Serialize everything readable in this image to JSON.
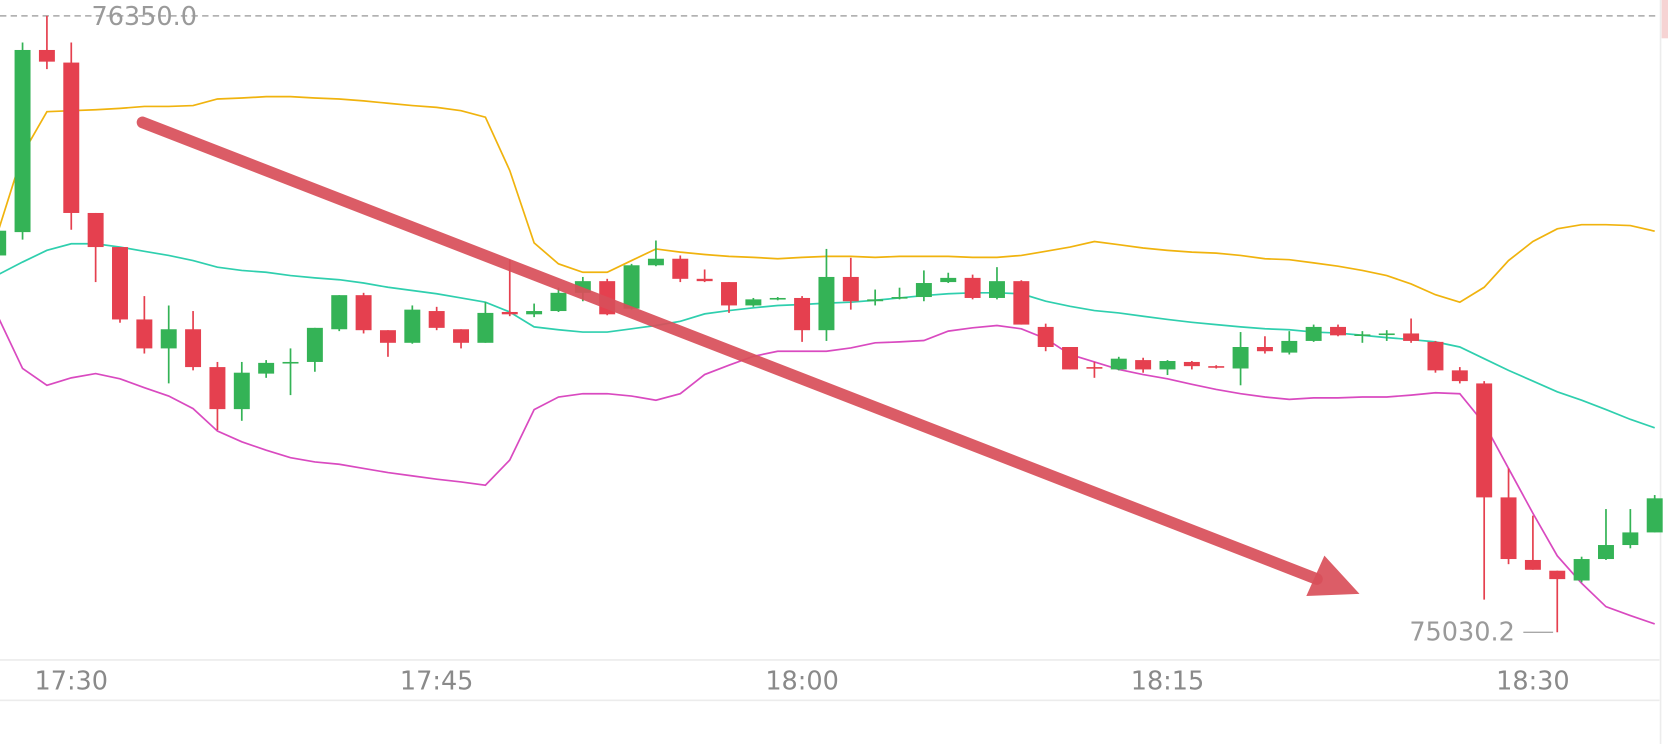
{
  "chart_data": {
    "type": "candlestick",
    "categories": [
      null,
      null,
      null,
      "17:30",
      null,
      null,
      null,
      null,
      null,
      null,
      null,
      null,
      null,
      null,
      null,
      null,
      null,
      null,
      "17:45",
      null,
      null,
      null,
      null,
      null,
      null,
      null,
      null,
      null,
      null,
      null,
      null,
      null,
      null,
      "18:00",
      null,
      null,
      null,
      null,
      null,
      null,
      null,
      null,
      null,
      null,
      null,
      null,
      null,
      null,
      "18:15",
      null,
      null,
      null,
      null,
      null,
      null,
      null,
      null,
      null,
      null,
      null,
      null,
      null,
      null,
      "18:30",
      null,
      null,
      null,
      null,
      null
    ],
    "open": [
      75837,
      75887,
      76277,
      76250,
      75928,
      75855,
      75700,
      75638,
      75679,
      75598,
      75508,
      75584,
      75607,
      75609,
      75679,
      75752,
      75677,
      75650,
      75718,
      75679,
      75650,
      75716,
      75711,
      75718,
      75757,
      75782,
      75723,
      75816,
      75830,
      75787,
      75780,
      75730,
      75743,
      75746,
      75677,
      75791,
      75739,
      75746,
      75748,
      75780,
      75789,
      75746,
      75782,
      75684,
      75641,
      75598,
      75593,
      75613,
      75593,
      75609,
      75600,
      75595,
      75641,
      75629,
      75654,
      75684,
      75666,
      75668,
      75670,
      75652,
      75591,
      75563,
      75319,
      75185,
      75162,
      75141,
      75187,
      75217,
      75244
    ],
    "high": [
      75894,
      76293,
      76350,
      76293,
      75928,
      75855,
      75750,
      75730,
      75718,
      75609,
      75609,
      75613,
      75638,
      75682,
      75752,
      75757,
      75677,
      75730,
      75727,
      75679,
      75737,
      75828,
      75734,
      75768,
      75791,
      75787,
      75819,
      75869,
      75837,
      75807,
      75780,
      75746,
      75748,
      75750,
      75851,
      75832,
      75764,
      75768,
      75805,
      75800,
      75796,
      75812,
      75784,
      75691,
      75641,
      75609,
      75620,
      75618,
      75613,
      75611,
      75602,
      75673,
      75664,
      75675,
      75689,
      75689,
      75675,
      75677,
      75702,
      75654,
      75598,
      75568,
      75381,
      75280,
      75162,
      75192,
      75294,
      75294,
      75324
    ],
    "low": [
      75837,
      75871,
      76236,
      75892,
      75780,
      75693,
      75627,
      75563,
      75591,
      75463,
      75483,
      75575,
      75538,
      75588,
      75675,
      75670,
      75620,
      75648,
      75677,
      75638,
      75650,
      75707,
      75705,
      75716,
      75739,
      75709,
      75721,
      75814,
      75780,
      75780,
      75714,
      75727,
      75741,
      75652,
      75654,
      75721,
      75730,
      75743,
      75739,
      75778,
      75743,
      75743,
      75689,
      75632,
      75593,
      75575,
      75591,
      75586,
      75581,
      75593,
      75595,
      75559,
      75627,
      75625,
      75652,
      75664,
      75650,
      75654,
      75650,
      75586,
      75563,
      75100,
      75176,
      75164,
      75030.2,
      75137,
      75185,
      75210,
      75244
    ],
    "close": [
      75890,
      76277,
      76252,
      75928,
      75855,
      75700,
      75638,
      75679,
      75598,
      75508,
      75586,
      75607,
      75609,
      75682,
      75752,
      75677,
      75650,
      75721,
      75682,
      75650,
      75714,
      75711,
      75718,
      75757,
      75782,
      75711,
      75816,
      75830,
      75787,
      75782,
      75730,
      75743,
      75746,
      75677,
      75791,
      75739,
      75743,
      75748,
      75778,
      75789,
      75746,
      75782,
      75689,
      75641,
      75593,
      75595,
      75616,
      75593,
      75611,
      75600,
      75598,
      75641,
      75632,
      75654,
      75684,
      75666,
      75668,
      75670,
      75654,
      75591,
      75568,
      75319,
      75187,
      75164,
      75144,
      75187,
      75217,
      75244,
      75317
    ],
    "up_color": "#34b356",
    "down_color": "#e5404f",
    "bands": {
      "upper": {
        "color": "#f0b30e",
        "values": [
          75889,
          76054,
          76145,
          76147,
          76149,
          76152,
          76156,
          76156,
          76158,
          76172,
          76174,
          76177,
          76177,
          76174,
          76172,
          76168,
          76163,
          76158,
          76154,
          76147,
          76133,
          76019,
          75864,
          75819,
          75801,
          75801,
          75826,
          75851,
          75844,
          75839,
          75835,
          75833,
          75830,
          75833,
          75835,
          75835,
          75833,
          75835,
          75835,
          75835,
          75833,
          75833,
          75837,
          75846,
          75855,
          75867,
          75860,
          75853,
          75848,
          75844,
          75842,
          75837,
          75830,
          75828,
          75821,
          75814,
          75805,
          75794,
          75776,
          75753,
          75737,
          75769,
          75826,
          75867,
          75894,
          75903,
          75903,
          75901,
          75889
        ]
      },
      "middle": {
        "color": "#2fcfae",
        "values": [
          75796,
          75823,
          75848,
          75862,
          75862,
          75855,
          75846,
          75837,
          75826,
          75812,
          75805,
          75801,
          75794,
          75789,
          75785,
          75778,
          75769,
          75762,
          75755,
          75746,
          75737,
          75716,
          75684,
          75678,
          75673,
          75673,
          75680,
          75687,
          75696,
          75712,
          75719,
          75725,
          75730,
          75732,
          75735,
          75737,
          75741,
          75746,
          75751,
          75755,
          75757,
          75757,
          75755,
          75739,
          75728,
          75719,
          75714,
          75707,
          75700,
          75694,
          75689,
          75684,
          75680,
          75678,
          75673,
          75671,
          75666,
          75661,
          75657,
          75652,
          75641,
          75616,
          75591,
          75568,
          75545,
          75527,
          75507,
          75486,
          75468
        ]
      },
      "lower": {
        "color": "#d94ac0",
        "values": [
          75705,
          75595,
          75559,
          75575,
          75584,
          75573,
          75554,
          75536,
          75509,
          75461,
          75438,
          75420,
          75404,
          75395,
          75390,
          75381,
          75372,
          75365,
          75358,
          75352,
          75345,
          75399,
          75507,
          75534,
          75541,
          75541,
          75536,
          75527,
          75541,
          75582,
          75602,
          75621,
          75632,
          75632,
          75632,
          75639,
          75650,
          75652,
          75655,
          75675,
          75682,
          75687,
          75680,
          75659,
          75625,
          75609,
          75593,
          75582,
          75573,
          75561,
          75550,
          75541,
          75534,
          75529,
          75532,
          75532,
          75534,
          75534,
          75538,
          75543,
          75541,
          75477,
          75381,
          75285,
          75194,
          75135,
          75085,
          75066,
          75048
        ]
      }
    },
    "ylim": [
      74971,
      76384
    ],
    "annotations": [
      {
        "value": 76350,
        "label": "76350.0"
      },
      {
        "value": 75030.2,
        "label": "75030.2"
      }
    ]
  }
}
